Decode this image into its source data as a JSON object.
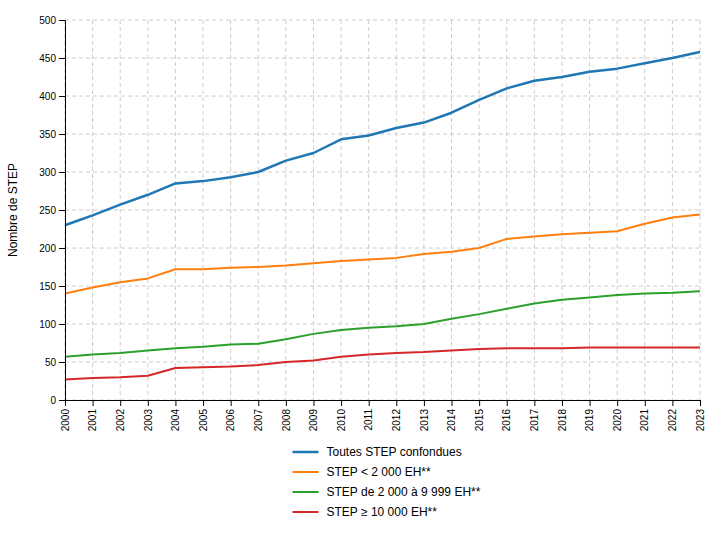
{
  "chart_data": {
    "type": "line",
    "y_label": "Nombre de STEP",
    "x": [
      2000,
      2001,
      2002,
      2003,
      2004,
      2005,
      2006,
      2007,
      2008,
      2009,
      2010,
      2011,
      2012,
      2013,
      2014,
      2015,
      2016,
      2017,
      2018,
      2019,
      2020,
      2021,
      2022,
      2023
    ],
    "series": [
      {
        "name": "Toutes STEP confondues",
        "values": [
          230,
          243,
          257,
          270,
          285,
          288,
          293,
          300,
          315,
          325,
          343,
          348,
          358,
          365,
          378,
          395,
          410,
          420,
          425,
          432,
          436,
          443,
          450,
          458
        ]
      },
      {
        "name": "STEP < 2 000 EH**",
        "values": [
          140,
          148,
          155,
          160,
          172,
          172,
          174,
          175,
          177,
          180,
          183,
          185,
          187,
          192,
          195,
          200,
          212,
          215,
          218,
          220,
          222,
          232,
          240,
          244
        ]
      },
      {
        "name": "STEP de 2 000 à 9 999 EH**",
        "values": [
          57,
          60,
          62,
          65,
          68,
          70,
          73,
          74,
          80,
          87,
          92,
          95,
          97,
          100,
          107,
          113,
          120,
          127,
          132,
          135,
          138,
          140,
          141,
          143
        ]
      },
      {
        "name": "STEP ≥ 10 000 EH**",
        "values": [
          27,
          29,
          30,
          32,
          42,
          43,
          44,
          46,
          50,
          52,
          57,
          60,
          62,
          63,
          65,
          67,
          68,
          68,
          68,
          69,
          69,
          69,
          69,
          69
        ]
      }
    ],
    "xlim": [
      2000,
      2023
    ],
    "xticks": [
      2000,
      2001,
      2002,
      2003,
      2004,
      2005,
      2006,
      2007,
      2008,
      2009,
      2010,
      2011,
      2012,
      2013,
      2014,
      2015,
      2016,
      2017,
      2018,
      2019,
      2020,
      2021,
      2022,
      2023
    ],
    "ylim": [
      0,
      500
    ],
    "yticks": [
      0,
      50,
      100,
      150,
      200,
      250,
      300,
      350,
      400,
      450,
      500
    ],
    "grid": true,
    "legend": "bottom"
  }
}
